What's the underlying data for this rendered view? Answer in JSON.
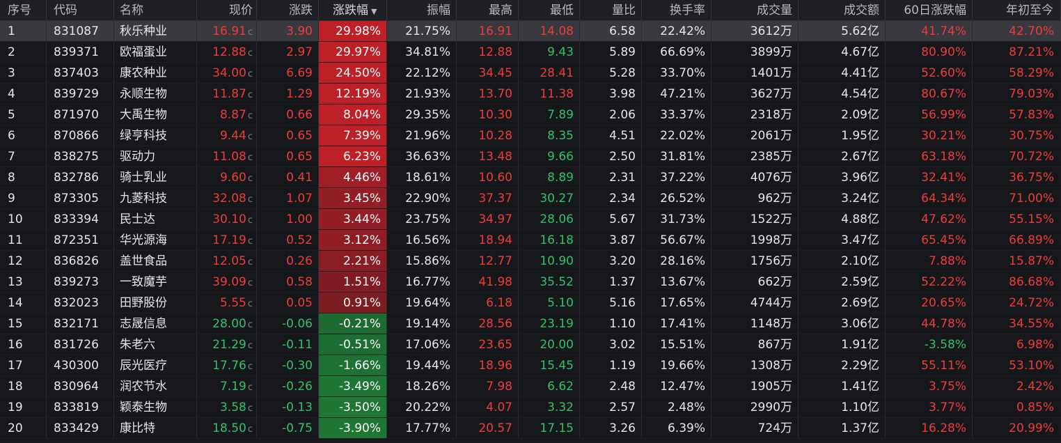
{
  "columns": {
    "idx": "序号",
    "code": "代码",
    "name": "名称",
    "price": "现价",
    "change": "涨跌",
    "pct": "涨跌幅",
    "amplitude": "振幅",
    "high": "最高",
    "low": "最低",
    "volume_ratio": "量比",
    "turnover_rate": "换手率",
    "volume": "成交量",
    "amount": "成交额",
    "chg60": "60日涨跌幅",
    "ytd": "年初至今"
  },
  "sort": {
    "column": "pct",
    "direction": "desc",
    "icon": "sort-desc-icon"
  },
  "colors": {
    "up": "#ee3b3b",
    "down": "#2ec26b",
    "up_bg": "#b32026",
    "down_bg": "#1e6e33",
    "selected_row": "#383a40"
  },
  "rows": [
    {
      "idx": "1",
      "code": "831087",
      "name": "秋乐种业",
      "price": "16.91",
      "price_flag": "c",
      "change": "3.90",
      "pct": "29.98%",
      "pct_level": 1.0,
      "amplitude": "21.75%",
      "high": "16.91",
      "low": "14.08",
      "volume_ratio": "6.58",
      "turnover_rate": "22.42%",
      "volume": "3612万",
      "amount": "5.62亿",
      "chg60": "41.74%",
      "ytd": "42.70%"
    },
    {
      "idx": "2",
      "code": "839371",
      "name": "欧福蛋业",
      "price": "12.88",
      "price_flag": "c",
      "change": "2.97",
      "pct": "29.97%",
      "pct_level": 1.0,
      "amplitude": "34.81%",
      "high": "12.88",
      "low": "9.43",
      "volume_ratio": "5.89",
      "turnover_rate": "66.69%",
      "volume": "3899万",
      "amount": "4.67亿",
      "chg60": "80.90%",
      "ytd": "87.21%"
    },
    {
      "idx": "3",
      "code": "837403",
      "name": "康农种业",
      "price": "34.00",
      "price_flag": "c",
      "change": "6.69",
      "pct": "24.50%",
      "pct_level": 1.0,
      "amplitude": "22.12%",
      "high": "34.45",
      "low": "28.41",
      "volume_ratio": "5.28",
      "turnover_rate": "33.70%",
      "volume": "1401万",
      "amount": "4.41亿",
      "chg60": "52.60%",
      "ytd": "58.29%"
    },
    {
      "idx": "4",
      "code": "839729",
      "name": "永顺生物",
      "price": "11.87",
      "price_flag": "c",
      "change": "1.29",
      "pct": "12.19%",
      "pct_level": 1.0,
      "amplitude": "21.93%",
      "high": "13.70",
      "low": "11.38",
      "volume_ratio": "3.98",
      "turnover_rate": "47.21%",
      "volume": "3627万",
      "amount": "4.54亿",
      "chg60": "80.67%",
      "ytd": "79.03%"
    },
    {
      "idx": "5",
      "code": "871970",
      "name": "大禹生物",
      "price": "8.87",
      "price_flag": "c",
      "change": "0.66",
      "pct": "8.04%",
      "pct_level": 1.0,
      "amplitude": "29.35%",
      "high": "10.30",
      "low": "7.89",
      "volume_ratio": "2.06",
      "turnover_rate": "33.37%",
      "volume": "2318万",
      "amount": "2.09亿",
      "chg60": "56.99%",
      "ytd": "57.83%"
    },
    {
      "idx": "6",
      "code": "870866",
      "name": "绿亨科技",
      "price": "9.44",
      "price_flag": "c",
      "change": "0.65",
      "pct": "7.39%",
      "pct_level": 1.0,
      "amplitude": "21.96%",
      "high": "10.28",
      "low": "8.35",
      "volume_ratio": "4.51",
      "turnover_rate": "22.02%",
      "volume": "2061万",
      "amount": "1.95亿",
      "chg60": "30.21%",
      "ytd": "30.75%"
    },
    {
      "idx": "7",
      "code": "838275",
      "name": "驱动力",
      "price": "11.08",
      "price_flag": "c",
      "change": "0.65",
      "pct": "6.23%",
      "pct_level": 1.0,
      "amplitude": "36.63%",
      "high": "13.48",
      "low": "9.66",
      "volume_ratio": "2.50",
      "turnover_rate": "31.81%",
      "volume": "2385万",
      "amount": "2.67亿",
      "chg60": "63.18%",
      "ytd": "70.72%"
    },
    {
      "idx": "8",
      "code": "832786",
      "name": "骑士乳业",
      "price": "9.60",
      "price_flag": "c",
      "change": "0.41",
      "pct": "4.46%",
      "pct_level": 0.75,
      "amplitude": "18.61%",
      "high": "10.60",
      "low": "8.89",
      "volume_ratio": "2.31",
      "turnover_rate": "37.22%",
      "volume": "4076万",
      "amount": "3.96亿",
      "chg60": "32.41%",
      "ytd": "36.75%"
    },
    {
      "idx": "9",
      "code": "873305",
      "name": "九菱科技",
      "price": "32.08",
      "price_flag": "c",
      "change": "1.07",
      "pct": "3.45%",
      "pct_level": 0.6,
      "amplitude": "22.90%",
      "high": "37.37",
      "low": "30.27",
      "volume_ratio": "2.34",
      "turnover_rate": "26.52%",
      "volume": "962万",
      "amount": "3.24亿",
      "chg60": "64.34%",
      "ytd": "71.00%"
    },
    {
      "idx": "10",
      "code": "833394",
      "name": "民士达",
      "price": "30.10",
      "price_flag": "c",
      "change": "1.00",
      "pct": "3.44%",
      "pct_level": 0.6,
      "amplitude": "23.75%",
      "high": "34.97",
      "low": "28.06",
      "volume_ratio": "5.67",
      "turnover_rate": "31.73%",
      "volume": "1522万",
      "amount": "4.88亿",
      "chg60": "47.62%",
      "ytd": "55.15%"
    },
    {
      "idx": "11",
      "code": "872351",
      "name": "华光源海",
      "price": "17.19",
      "price_flag": "c",
      "change": "0.52",
      "pct": "3.12%",
      "pct_level": 0.58,
      "amplitude": "16.56%",
      "high": "18.94",
      "low": "16.18",
      "volume_ratio": "3.87",
      "turnover_rate": "56.67%",
      "volume": "1998万",
      "amount": "3.47亿",
      "chg60": "65.45%",
      "ytd": "66.89%"
    },
    {
      "idx": "12",
      "code": "836826",
      "name": "盖世食品",
      "price": "12.05",
      "price_flag": "c",
      "change": "0.26",
      "pct": "2.21%",
      "pct_level": 0.5,
      "amplitude": "15.86%",
      "high": "12.77",
      "low": "10.90",
      "volume_ratio": "3.20",
      "turnover_rate": "28.16%",
      "volume": "1756万",
      "amount": "2.10亿",
      "chg60": "7.88%",
      "ytd": "15.87%"
    },
    {
      "idx": "13",
      "code": "839273",
      "name": "一致魔芋",
      "price": "39.09",
      "price_flag": "c",
      "change": "0.58",
      "pct": "1.51%",
      "pct_level": 0.45,
      "amplitude": "16.77%",
      "high": "41.98",
      "low": "35.52",
      "volume_ratio": "1.37",
      "turnover_rate": "13.67%",
      "volume": "662万",
      "amount": "2.59亿",
      "chg60": "52.22%",
      "ytd": "86.68%"
    },
    {
      "idx": "14",
      "code": "832023",
      "name": "田野股份",
      "price": "5.55",
      "price_flag": "c",
      "change": "0.05",
      "pct": "0.91%",
      "pct_level": 0.4,
      "amplitude": "19.64%",
      "high": "6.18",
      "low": "5.10",
      "volume_ratio": "5.16",
      "turnover_rate": "17.65%",
      "volume": "4744万",
      "amount": "2.69亿",
      "chg60": "20.65%",
      "ytd": "24.72%"
    },
    {
      "idx": "15",
      "code": "832171",
      "name": "志晟信息",
      "price": "28.00",
      "price_flag": "c",
      "change": "-0.06",
      "pct": "-0.21%",
      "pct_level": 0.8,
      "amplitude": "19.14%",
      "high": "28.56",
      "low": "23.19",
      "volume_ratio": "1.10",
      "turnover_rate": "17.41%",
      "volume": "1148万",
      "amount": "3.06亿",
      "chg60": "44.78%",
      "ytd": "34.55%"
    },
    {
      "idx": "16",
      "code": "831726",
      "name": "朱老六",
      "price": "21.29",
      "price_flag": "c",
      "change": "-0.11",
      "pct": "-0.51%",
      "pct_level": 0.85,
      "amplitude": "17.06%",
      "high": "23.65",
      "low": "20.00",
      "volume_ratio": "3.02",
      "turnover_rate": "15.51%",
      "volume": "867万",
      "amount": "1.91亿",
      "chg60": "-3.58%",
      "ytd": "6.98%"
    },
    {
      "idx": "17",
      "code": "430300",
      "name": "辰光医疗",
      "price": "17.76",
      "price_flag": "c",
      "change": "-0.30",
      "pct": "-1.66%",
      "pct_level": 0.9,
      "amplitude": "19.44%",
      "high": "18.96",
      "low": "15.45",
      "volume_ratio": "1.19",
      "turnover_rate": "19.66%",
      "volume": "1308万",
      "amount": "2.29亿",
      "chg60": "55.11%",
      "ytd": "53.10%"
    },
    {
      "idx": "18",
      "code": "830964",
      "name": "润农节水",
      "price": "7.19",
      "price_flag": "c",
      "change": "-0.26",
      "pct": "-3.49%",
      "pct_level": 1.0,
      "amplitude": "18.26%",
      "high": "7.98",
      "low": "6.62",
      "volume_ratio": "2.48",
      "turnover_rate": "12.47%",
      "volume": "1905万",
      "amount": "1.41亿",
      "chg60": "3.75%",
      "ytd": "2.42%"
    },
    {
      "idx": "19",
      "code": "833819",
      "name": "颖泰生物",
      "price": "3.58",
      "price_flag": "c",
      "change": "-0.13",
      "pct": "-3.50%",
      "pct_level": 1.0,
      "amplitude": "20.22%",
      "high": "4.07",
      "low": "3.32",
      "volume_ratio": "2.57",
      "turnover_rate": "2.48%",
      "volume": "2990万",
      "amount": "1.10亿",
      "chg60": "3.77%",
      "ytd": "0.85%"
    },
    {
      "idx": "20",
      "code": "833429",
      "name": "康比特",
      "price": "18.50",
      "price_flag": "c",
      "change": "-0.75",
      "pct": "-3.90%",
      "pct_level": 1.0,
      "amplitude": "17.77%",
      "high": "20.57",
      "low": "17.15",
      "volume_ratio": "3.26",
      "turnover_rate": "6.39%",
      "volume": "724万",
      "amount": "1.37亿",
      "chg60": "16.28%",
      "ytd": "20.99%"
    }
  ]
}
